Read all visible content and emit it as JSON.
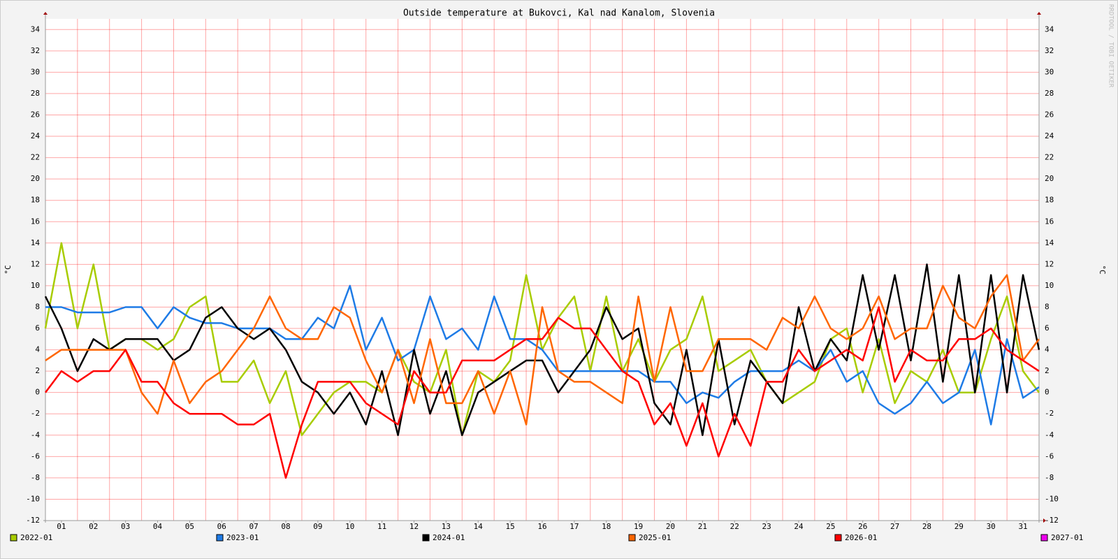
{
  "chart_data": {
    "type": "line",
    "title": "Outside temperature at Bukovci, Kal nad Kanalom, Slovenia",
    "y_label": "°C",
    "watermark": "RRDTOOL / TOBI OETIKER",
    "x": [
      0,
      0.5,
      1,
      1.5,
      2,
      2.5,
      3,
      3.5,
      4,
      4.5,
      5,
      5.5,
      6,
      6.5,
      7,
      7.5,
      8,
      8.5,
      9,
      9.5,
      10,
      10.5,
      11,
      11.5,
      12,
      12.5,
      13,
      13.5,
      14,
      14.5,
      15,
      15.5,
      16,
      16.5,
      17,
      17.5,
      18,
      18.5,
      19,
      19.5,
      20,
      20.5,
      21,
      21.5,
      22,
      22.5,
      23,
      23.5,
      24,
      24.5,
      25,
      25.5,
      26,
      26.5,
      27,
      27.5,
      28,
      28.5,
      29,
      29.5,
      30,
      30.5,
      31
    ],
    "xlim": [
      0,
      31
    ],
    "xticks": [
      {
        "value": 0.5,
        "label": "01"
      },
      {
        "value": 1.5,
        "label": "02"
      },
      {
        "value": 2.5,
        "label": "03"
      },
      {
        "value": 3.5,
        "label": "04"
      },
      {
        "value": 4.5,
        "label": "05"
      },
      {
        "value": 5.5,
        "label": "06"
      },
      {
        "value": 6.5,
        "label": "07"
      },
      {
        "value": 7.5,
        "label": "08"
      },
      {
        "value": 8.5,
        "label": "09"
      },
      {
        "value": 9.5,
        "label": "10"
      },
      {
        "value": 10.5,
        "label": "11"
      },
      {
        "value": 11.5,
        "label": "12"
      },
      {
        "value": 12.5,
        "label": "13"
      },
      {
        "value": 13.5,
        "label": "14"
      },
      {
        "value": 14.5,
        "label": "15"
      },
      {
        "value": 15.5,
        "label": "16"
      },
      {
        "value": 16.5,
        "label": "17"
      },
      {
        "value": 17.5,
        "label": "18"
      },
      {
        "value": 18.5,
        "label": "19"
      },
      {
        "value": 19.5,
        "label": "20"
      },
      {
        "value": 20.5,
        "label": "21"
      },
      {
        "value": 21.5,
        "label": "22"
      },
      {
        "value": 22.5,
        "label": "23"
      },
      {
        "value": 23.5,
        "label": "24"
      },
      {
        "value": 24.5,
        "label": "25"
      },
      {
        "value": 25.5,
        "label": "26"
      },
      {
        "value": 26.5,
        "label": "27"
      },
      {
        "value": 27.5,
        "label": "28"
      },
      {
        "value": 28.5,
        "label": "29"
      },
      {
        "value": 29.5,
        "label": "30"
      },
      {
        "value": 30.5,
        "label": "31"
      }
    ],
    "ylim": [
      -12,
      35
    ],
    "yticks": [
      -12,
      -10,
      -8,
      -6,
      -4,
      -2,
      0,
      2,
      4,
      6,
      8,
      10,
      12,
      14,
      16,
      18,
      20,
      22,
      24,
      26,
      28,
      30,
      32,
      34
    ],
    "grid": true,
    "series": [
      {
        "name": "2022-01",
        "color": "#a8cc00",
        "values": [
          6,
          14,
          6,
          12,
          4,
          5,
          5,
          4,
          5,
          8,
          9,
          1,
          1,
          3,
          -1,
          2,
          -4,
          -2,
          0,
          1,
          1,
          0,
          4,
          1,
          0,
          4,
          -4,
          2,
          1,
          3,
          11,
          4,
          7,
          9,
          2,
          9,
          2,
          5,
          1,
          4,
          5,
          9,
          2,
          3,
          4,
          1,
          -1,
          0,
          1,
          5,
          6,
          0,
          5,
          -1,
          2,
          1,
          4,
          0,
          0,
          5,
          9,
          2,
          0
        ]
      },
      {
        "name": "2023-01",
        "color": "#1e7be6",
        "values": [
          8,
          8,
          7.5,
          7.5,
          7.5,
          8,
          8,
          6,
          8,
          7,
          6.5,
          6.5,
          6,
          6,
          6,
          5,
          5,
          7,
          6,
          10,
          4,
          7,
          3,
          4,
          9,
          5,
          6,
          4,
          9,
          5,
          5,
          4,
          2,
          2,
          2,
          2,
          2,
          2,
          1,
          1,
          -1,
          0,
          -0.5,
          1,
          2,
          2,
          2,
          3,
          2,
          4,
          1,
          2,
          -1,
          -2,
          -1,
          1,
          -1,
          0,
          4,
          -3,
          5,
          -0.5,
          0.5
        ]
      },
      {
        "name": "2024-01",
        "color": "#000000",
        "values": [
          9,
          6,
          2,
          5,
          4,
          5,
          5,
          5,
          3,
          4,
          7,
          8,
          6,
          5,
          6,
          4,
          1,
          0,
          -2,
          0,
          -3,
          2,
          -4,
          4,
          -2,
          2,
          -4,
          0,
          1,
          2,
          3,
          3,
          0,
          2,
          4,
          8,
          5,
          6,
          -1,
          -3,
          4,
          -4,
          5,
          -3,
          3,
          1,
          -1,
          8,
          2,
          5,
          3,
          11,
          4,
          11,
          3,
          12,
          1,
          11,
          0,
          11,
          0,
          11,
          4
        ]
      },
      {
        "name": "2025-01",
        "color": "#ff6600",
        "values": [
          3,
          4,
          4,
          4,
          4,
          4,
          0,
          -2,
          3,
          -1,
          1,
          2,
          4,
          6,
          9,
          6,
          5,
          5,
          8,
          7,
          3,
          0,
          4,
          -1,
          5,
          -1,
          -1,
          2,
          -2,
          2,
          -3,
          8,
          2,
          1,
          1,
          0,
          -1,
          9,
          1,
          8,
          2,
          2,
          5,
          5,
          5,
          4,
          7,
          6,
          9,
          6,
          5,
          6,
          9,
          5,
          6,
          6,
          10,
          7,
          6,
          9,
          11,
          3,
          5
        ]
      },
      {
        "name": "2026-01",
        "color": "#ff0000",
        "values": [
          0,
          2,
          1,
          2,
          2,
          4,
          1,
          1,
          -1,
          -2,
          -2,
          -2,
          -3,
          -3,
          -2,
          -8,
          -3,
          1,
          1,
          1,
          -1,
          -2,
          -3,
          2,
          0,
          0,
          3,
          3,
          3,
          4,
          5,
          5,
          7,
          6,
          6,
          4,
          2,
          1,
          -3,
          -1,
          -5,
          -1,
          -6,
          -2,
          -5,
          1,
          1,
          4,
          2,
          3,
          4,
          3,
          8,
          1,
          4,
          3,
          3,
          5,
          5,
          6,
          4,
          3,
          2
        ]
      },
      {
        "name": "2027-01",
        "color": "#ee00ee",
        "values": [
          null,
          null,
          null,
          null,
          null,
          null,
          null,
          null,
          null,
          null,
          null,
          null,
          null,
          null,
          null,
          null,
          null,
          null,
          null,
          null,
          null,
          null,
          null,
          null,
          null,
          null,
          null,
          null,
          null,
          null,
          null,
          null,
          null,
          null,
          null,
          null,
          null,
          null,
          null,
          null,
          null,
          null,
          null,
          null,
          null,
          null,
          null,
          null,
          null,
          null,
          null,
          null,
          null,
          null,
          null,
          null,
          null,
          null,
          null,
          null,
          null,
          null,
          null
        ]
      }
    ]
  }
}
